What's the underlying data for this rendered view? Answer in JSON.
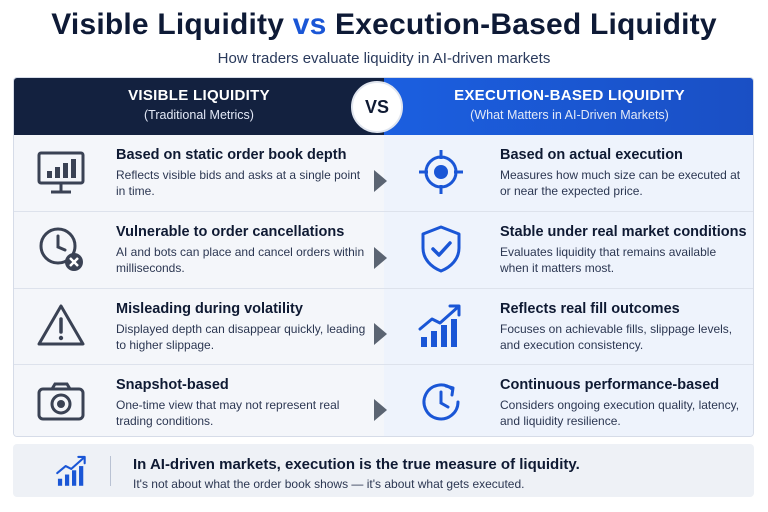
{
  "title": {
    "part1": "Visible Liquidity",
    "vs": "vs",
    "part2": "Execution-Based Liquidity"
  },
  "subtitle": "How traders evaluate liquidity in AI-driven markets",
  "colors": {
    "navy": "#13213f",
    "blue": "#1b5fe0",
    "icon_dark": "#3a4254",
    "icon_blue": "#1a56d6",
    "arrow": "#5b6472"
  },
  "vs_badge": "VS",
  "left": {
    "header": "VISIBLE LIQUIDITY",
    "subheader": "(Traditional Metrics)",
    "items": [
      {
        "icon": "monitor-chart-icon",
        "title": "Based on static order book depth",
        "desc": "Reflects visible bids and asks at a single point in time."
      },
      {
        "icon": "clock-cancel-icon",
        "title": "Vulnerable to order cancellations",
        "desc": "AI and bots can place and cancel orders within milliseconds."
      },
      {
        "icon": "warning-icon",
        "title": "Misleading during volatility",
        "desc": "Displayed depth can disappear quickly, leading to higher slippage."
      },
      {
        "icon": "camera-icon",
        "title": "Snapshot-based",
        "desc": "One-time view that may not represent real trading conditions."
      }
    ]
  },
  "right": {
    "header": "EXECUTION-BASED LIQUIDITY",
    "subheader": "(What Matters in AI-Driven Markets)",
    "items": [
      {
        "icon": "target-icon",
        "title": "Based on actual execution",
        "desc": "Measures how much size can be executed at or near the expected price."
      },
      {
        "icon": "shield-check-icon",
        "title": "Stable under real market conditions",
        "desc": "Evaluates liquidity that remains available when it matters most."
      },
      {
        "icon": "growth-chart-icon",
        "title": "Reflects real fill outcomes",
        "desc": "Focuses on achievable fills, slippage levels, and execution consistency."
      },
      {
        "icon": "clock-refresh-icon",
        "title": "Continuous performance-based",
        "desc": "Considers ongoing execution quality, latency, and liquidity resilience."
      }
    ]
  },
  "footer": {
    "icon": "growth-chart-icon",
    "title": "In AI-driven markets, execution is the true measure of liquidity.",
    "subtitle": "It's not about what the order book shows — it's about what gets executed."
  }
}
